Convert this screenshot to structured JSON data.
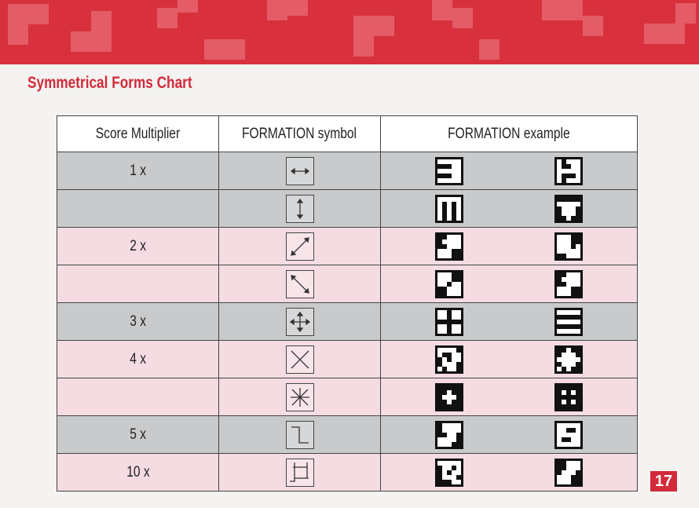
{
  "title": "Symmetrical Forms Chart",
  "headers": [
    "Score Multiplier",
    "FORMATION symbol",
    "FORMATION example"
  ],
  "rows": [
    {
      "multiplier": "1 x",
      "symbol": "horizontal-arrow-icon",
      "bg": "gray",
      "examples": [
        "0000011100000001110000000",
        "0100001100000000111001000"
      ]
    },
    {
      "multiplier": "",
      "symbol": "vertical-arrow-icon",
      "bg": "gray",
      "examples": [
        "0000001010010100101001010",
        "1111100000100011000111011"
      ]
    },
    {
      "multiplier": "2 x",
      "symbol": "diagonal-up-arrow-icon",
      "bg": "pink",
      "examples": [
        "1100010000110000001100011",
        "0001100011000100000011000"
      ]
    },
    {
      "multiplier": "",
      "symbol": "diagonal-down-arrow-icon",
      "bg": "pink",
      "examples": [
        "0001100011001001100011000",
        "1100010000110000001100011"
      ]
    },
    {
      "multiplier": "3 x",
      "symbol": "four-way-arrow-icon",
      "bg": "gray",
      "examples": [
        "0010000100111110010000100",
        "0000011111000001111100000"
      ]
    },
    {
      "multiplier": "4 x",
      "symbol": "x-arrow-icon",
      "bg": "pink",
      "examples": [
        "0000101100101001000101001",
        "1101110001000001000101011"
      ]
    },
    {
      "multiplier": "",
      "symbol": "eight-way-arrow-icon",
      "bg": "pink",
      "examples": [
        "1111111011100011101111111",
        "1111110101111111010111111"
      ]
    },
    {
      "multiplier": "5 x",
      "symbol": "z-arrow-icon",
      "bg": "gray",
      "examples": [
        "1000010000110010000100011",
        "0000000110000000110000000"
      ]
    },
    {
      "multiplier": "10 x",
      "symbol": "swirl-arrow-icon",
      "bg": "pink",
      "examples": [
        "0000010010101001000111100",
        "1100011000100010001100011"
      ]
    }
  ],
  "page_number": "17",
  "colors": {
    "banner": "#d9303e",
    "title": "#d22a3a",
    "gray_row": "#c9cacc",
    "pink_row": "#f4dce2"
  }
}
